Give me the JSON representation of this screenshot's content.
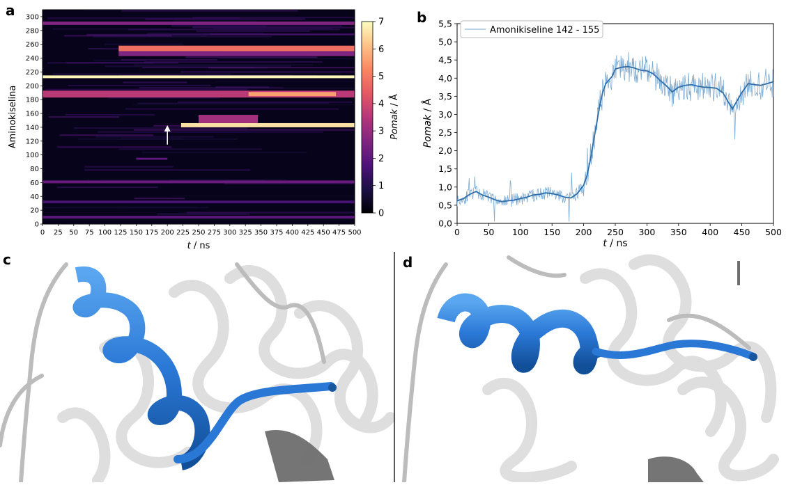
{
  "panels": {
    "a": "a",
    "b": "b",
    "c": "c",
    "d": "d"
  },
  "colors": {
    "line_raw": "#7aaad3",
    "line_smooth": "#2f6eaa",
    "helix_blue": "#2a78d6",
    "ribbon_gray": "#c6c6c6",
    "ribbon_dark": "#6e6e6e"
  },
  "chart_data": [
    {
      "type": "heatmap",
      "panel": "a",
      "xlabel_italic": "t",
      "xlabel_rest": " / ns",
      "ylabel": "Aminokiselina",
      "xlim": [
        0,
        500
      ],
      "ylim": [
        0,
        310
      ],
      "x_ticks": [
        0,
        25,
        50,
        75,
        100,
        125,
        150,
        175,
        200,
        225,
        250,
        275,
        300,
        325,
        350,
        375,
        400,
        425,
        450,
        475,
        500
      ],
      "y_ticks": [
        0,
        20,
        40,
        60,
        80,
        100,
        120,
        140,
        160,
        180,
        200,
        220,
        240,
        260,
        280,
        300
      ],
      "colorbar": {
        "label_italic": "Pomak",
        "label_rest": " / Å",
        "range": [
          0,
          7
        ],
        "ticks": [
          0,
          1,
          2,
          3,
          4,
          5,
          6,
          7
        ],
        "colormap": "magma"
      },
      "bands": [
        {
          "y0": 140,
          "y1": 146,
          "x0": 222,
          "x1": 500,
          "value": 6.6
        },
        {
          "y0": 146,
          "y1": 158,
          "x0": 250,
          "x1": 345,
          "value": 3.2
        },
        {
          "y0": 211,
          "y1": 215,
          "x0": 0,
          "x1": 500,
          "value": 6.9
        },
        {
          "y0": 183,
          "y1": 193,
          "x0": 0,
          "x1": 500,
          "value": 3.6
        },
        {
          "y0": 185,
          "y1": 191,
          "x0": 330,
          "x1": 470,
          "value": 5.6
        },
        {
          "y0": 250,
          "y1": 258,
          "x0": 122,
          "x1": 500,
          "value": 4.8
        },
        {
          "y0": 243,
          "y1": 250,
          "x0": 122,
          "x1": 500,
          "value": 2.6
        },
        {
          "y0": 288,
          "y1": 293,
          "x0": 0,
          "x1": 500,
          "value": 2.6
        },
        {
          "y0": 59,
          "y1": 63,
          "x0": 0,
          "x1": 500,
          "value": 2.2
        },
        {
          "y0": 8,
          "y1": 12,
          "x0": 0,
          "x1": 500,
          "value": 2.0
        },
        {
          "y0": 30,
          "y1": 34,
          "x0": 0,
          "x1": 500,
          "value": 1.6
        },
        {
          "y0": 93,
          "y1": 96,
          "x0": 150,
          "x1": 200,
          "value": 2.0
        }
      ],
      "annotation": {
        "type": "arrow",
        "x": 200,
        "y_from": 115,
        "y_to": 143
      }
    },
    {
      "type": "line",
      "panel": "b",
      "xlabel_italic": "t",
      "xlabel_rest": " / ns",
      "ylabel_italic": "Pomak",
      "ylabel_rest": " / Å",
      "xlim": [
        0,
        500
      ],
      "ylim": [
        0,
        5.5
      ],
      "x_ticks": [
        0,
        50,
        100,
        150,
        200,
        250,
        300,
        350,
        400,
        450,
        500
      ],
      "y_ticks": [
        "0,0",
        "0,5",
        "1,0",
        "1,5",
        "2,0",
        "2,5",
        "3,0",
        "3,5",
        "4,0",
        "4,5",
        "5,0",
        "5,5"
      ],
      "legend": {
        "label": "Amonikiseline 142 - 155",
        "position": "top-left"
      },
      "series": [
        {
          "name": "Amonikiseline 142 - 155",
          "smooth": {
            "x": [
              0,
              10,
              20,
              30,
              40,
              50,
              60,
              70,
              80,
              90,
              100,
              110,
              120,
              130,
              140,
              150,
              160,
              170,
              180,
              190,
              200,
              205,
              210,
              215,
              220,
              225,
              230,
              235,
              240,
              245,
              250,
              260,
              270,
              280,
              290,
              300,
              310,
              320,
              330,
              340,
              350,
              360,
              370,
              380,
              390,
              400,
              410,
              420,
              430,
              435,
              440,
              450,
              460,
              470,
              480,
              490,
              500
            ],
            "y": [
              0.62,
              0.68,
              0.8,
              0.88,
              0.78,
              0.72,
              0.65,
              0.6,
              0.62,
              0.64,
              0.68,
              0.72,
              0.78,
              0.8,
              0.84,
              0.82,
              0.78,
              0.72,
              0.7,
              0.82,
              1.05,
              1.3,
              1.7,
              2.2,
              2.7,
              3.2,
              3.6,
              3.85,
              3.95,
              4.05,
              4.25,
              4.3,
              4.32,
              4.28,
              4.22,
              4.2,
              4.12,
              3.95,
              3.8,
              3.62,
              3.75,
              3.8,
              3.82,
              3.78,
              3.75,
              3.74,
              3.72,
              3.6,
              3.3,
              3.15,
              3.3,
              3.6,
              3.85,
              3.82,
              3.8,
              3.85,
              3.9
            ]
          }
        }
      ]
    }
  ]
}
